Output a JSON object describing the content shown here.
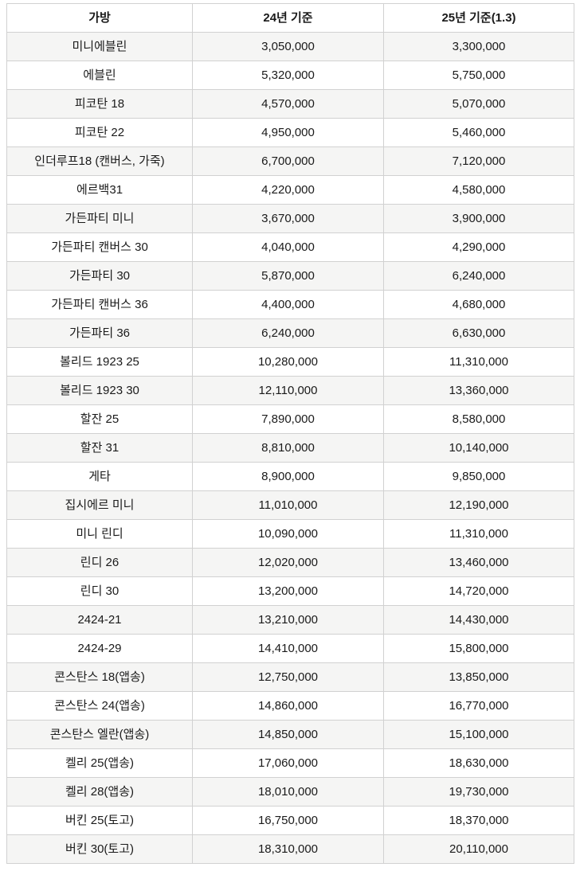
{
  "colors": {
    "stripe": "#f5f5f4",
    "border": "#d1d1d1",
    "text": "#1a1a1a",
    "background": "#ffffff"
  },
  "table": {
    "columns": [
      {
        "key": "bag",
        "label": "가방"
      },
      {
        "key": "price_2024",
        "label": "24년 기준"
      },
      {
        "key": "price_2025",
        "label": "25년 기준(1.3)"
      }
    ],
    "rows": [
      {
        "bag": "미니에블린",
        "price_2024": "3,050,000",
        "price_2025": "3,300,000"
      },
      {
        "bag": "에블린",
        "price_2024": "5,320,000",
        "price_2025": "5,750,000"
      },
      {
        "bag": "피코탄 18",
        "price_2024": "4,570,000",
        "price_2025": "5,070,000"
      },
      {
        "bag": "피코탄 22",
        "price_2024": "4,950,000",
        "price_2025": "5,460,000"
      },
      {
        "bag": "인더루프18 (캔버스, 가죽)",
        "price_2024": "6,700,000",
        "price_2025": "7,120,000"
      },
      {
        "bag": "에르백31",
        "price_2024": "4,220,000",
        "price_2025": "4,580,000"
      },
      {
        "bag": "가든파티 미니",
        "price_2024": "3,670,000",
        "price_2025": "3,900,000"
      },
      {
        "bag": "가든파티 캔버스 30",
        "price_2024": "4,040,000",
        "price_2025": "4,290,000"
      },
      {
        "bag": "가든파티 30",
        "price_2024": "5,870,000",
        "price_2025": "6,240,000"
      },
      {
        "bag": "가든파티 캔버스 36",
        "price_2024": "4,400,000",
        "price_2025": "4,680,000"
      },
      {
        "bag": "가든파티 36",
        "price_2024": "6,240,000",
        "price_2025": "6,630,000"
      },
      {
        "bag": "볼리드 1923 25",
        "price_2024": "10,280,000",
        "price_2025": "11,310,000"
      },
      {
        "bag": "볼리드 1923 30",
        "price_2024": "12,110,000",
        "price_2025": "13,360,000"
      },
      {
        "bag": "할잔 25",
        "price_2024": "7,890,000",
        "price_2025": "8,580,000"
      },
      {
        "bag": "할잔 31",
        "price_2024": "8,810,000",
        "price_2025": "10,140,000"
      },
      {
        "bag": "게타",
        "price_2024": "8,900,000",
        "price_2025": "9,850,000"
      },
      {
        "bag": "집시에르 미니",
        "price_2024": "11,010,000",
        "price_2025": "12,190,000"
      },
      {
        "bag": "미니 린디",
        "price_2024": "10,090,000",
        "price_2025": "11,310,000"
      },
      {
        "bag": "린디 26",
        "price_2024": "12,020,000",
        "price_2025": "13,460,000"
      },
      {
        "bag": "린디 30",
        "price_2024": "13,200,000",
        "price_2025": "14,720,000"
      },
      {
        "bag": "2424-21",
        "price_2024": "13,210,000",
        "price_2025": "14,430,000"
      },
      {
        "bag": "2424-29",
        "price_2024": "14,410,000",
        "price_2025": "15,800,000"
      },
      {
        "bag": "콘스탄스 18(앱송)",
        "price_2024": "12,750,000",
        "price_2025": "13,850,000"
      },
      {
        "bag": "콘스탄스 24(앱송)",
        "price_2024": "14,860,000",
        "price_2025": "16,770,000"
      },
      {
        "bag": "콘스탄스 엘란(앱송)",
        "price_2024": "14,850,000",
        "price_2025": "15,100,000"
      },
      {
        "bag": "켈리 25(앱송)",
        "price_2024": "17,060,000",
        "price_2025": "18,630,000"
      },
      {
        "bag": "켈리 28(앱송)",
        "price_2024": "18,010,000",
        "price_2025": "19,730,000"
      },
      {
        "bag": "버킨 25(토고)",
        "price_2024": "16,750,000",
        "price_2025": "18,370,000"
      },
      {
        "bag": "버킨 30(토고)",
        "price_2024": "18,310,000",
        "price_2025": "20,110,000"
      }
    ]
  }
}
